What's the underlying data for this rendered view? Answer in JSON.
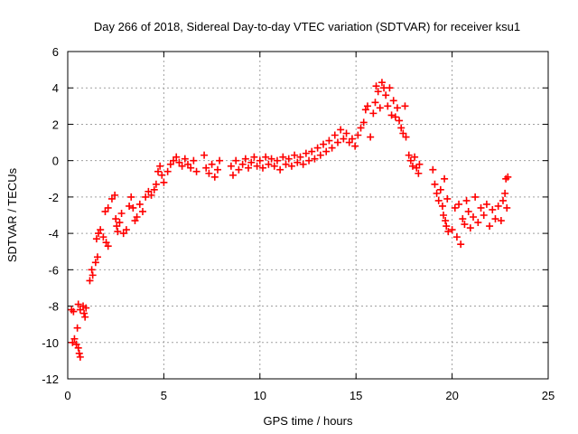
{
  "chart_data": {
    "type": "scatter",
    "title": "Day 266 of 2018, Sidereal Day-to-day VTEC variation (SDTVAR) for receiver ksu1",
    "xlabel": "GPS time / hours",
    "ylabel": "SDTVAR / TECUs",
    "xlim": [
      0,
      25
    ],
    "ylim": [
      -12,
      6
    ],
    "xticks": [
      "0",
      "5",
      "10",
      "15",
      "20",
      "25"
    ],
    "yticks": [
      "6",
      "4",
      "2",
      "0",
      "-2",
      "-4",
      "-6",
      "-8",
      "-10",
      "-12"
    ],
    "grid": true,
    "legend": "none",
    "marker": "plus",
    "color": "#ff0000",
    "series": [
      {
        "name": "SDTVAR",
        "points": [
          [
            0.2,
            -8.2
          ],
          [
            0.3,
            -8.3
          ],
          [
            0.25,
            -10.0
          ],
          [
            0.35,
            -9.8
          ],
          [
            0.45,
            -10.1
          ],
          [
            0.55,
            -10.3
          ],
          [
            0.6,
            -10.6
          ],
          [
            0.65,
            -10.8
          ],
          [
            0.5,
            -9.2
          ],
          [
            0.55,
            -7.9
          ],
          [
            0.65,
            -8.2
          ],
          [
            0.8,
            -8.0
          ],
          [
            0.85,
            -8.4
          ],
          [
            0.9,
            -8.6
          ],
          [
            0.95,
            -8.1
          ],
          [
            1.15,
            -6.6
          ],
          [
            1.25,
            -6.0
          ],
          [
            1.3,
            -6.3
          ],
          [
            1.45,
            -5.6
          ],
          [
            1.55,
            -5.3
          ],
          [
            1.5,
            -4.3
          ],
          [
            1.6,
            -4.0
          ],
          [
            1.7,
            -3.8
          ],
          [
            1.85,
            -4.2
          ],
          [
            2.0,
            -4.5
          ],
          [
            2.1,
            -4.7
          ],
          [
            1.95,
            -2.8
          ],
          [
            2.1,
            -2.6
          ],
          [
            2.3,
            -2.1
          ],
          [
            2.45,
            -1.9
          ],
          [
            2.5,
            -3.2
          ],
          [
            2.55,
            -3.6
          ],
          [
            2.6,
            -3.9
          ],
          [
            2.7,
            -3.4
          ],
          [
            2.8,
            -2.9
          ],
          [
            2.9,
            -4.0
          ],
          [
            3.05,
            -3.8
          ],
          [
            3.2,
            -2.5
          ],
          [
            3.3,
            -2.0
          ],
          [
            3.4,
            -2.6
          ],
          [
            3.5,
            -3.3
          ],
          [
            3.6,
            -3.1
          ],
          [
            3.75,
            -2.4
          ],
          [
            3.9,
            -2.8
          ],
          [
            4.05,
            -2.0
          ],
          [
            4.2,
            -1.7
          ],
          [
            4.35,
            -1.9
          ],
          [
            4.5,
            -1.6
          ],
          [
            4.6,
            -1.3
          ],
          [
            4.7,
            -0.6
          ],
          [
            4.8,
            -0.3
          ],
          [
            4.9,
            -0.8
          ],
          [
            5.0,
            -1.2
          ],
          [
            5.2,
            -0.6
          ],
          [
            5.35,
            -0.2
          ],
          [
            5.5,
            0.0
          ],
          [
            5.65,
            0.2
          ],
          [
            5.8,
            -0.1
          ],
          [
            5.95,
            -0.3
          ],
          [
            6.1,
            0.1
          ],
          [
            6.25,
            -0.2
          ],
          [
            6.4,
            -0.4
          ],
          [
            6.55,
            0.0
          ],
          [
            6.7,
            -0.6
          ],
          [
            7.1,
            0.3
          ],
          [
            7.2,
            -0.4
          ],
          [
            7.35,
            -0.7
          ],
          [
            7.5,
            -0.2
          ],
          [
            7.65,
            -0.9
          ],
          [
            7.8,
            -0.5
          ],
          [
            7.9,
            0.0
          ],
          [
            8.5,
            -0.3
          ],
          [
            8.6,
            -0.8
          ],
          [
            8.75,
            0.0
          ],
          [
            8.9,
            -0.5
          ],
          [
            9.1,
            -0.2
          ],
          [
            9.25,
            0.1
          ],
          [
            9.4,
            -0.4
          ],
          [
            9.55,
            -0.1
          ],
          [
            9.7,
            0.2
          ],
          [
            9.85,
            -0.3
          ],
          [
            10.0,
            0.0
          ],
          [
            10.15,
            -0.4
          ],
          [
            10.3,
            0.2
          ],
          [
            10.45,
            -0.2
          ],
          [
            10.6,
            0.1
          ],
          [
            10.75,
            -0.3
          ],
          [
            10.9,
            0.0
          ],
          [
            11.05,
            -0.5
          ],
          [
            11.2,
            0.2
          ],
          [
            11.35,
            -0.2
          ],
          [
            11.5,
            0.1
          ],
          [
            11.65,
            -0.3
          ],
          [
            11.8,
            0.3
          ],
          [
            11.95,
            -0.1
          ],
          [
            12.1,
            0.2
          ],
          [
            12.25,
            -0.2
          ],
          [
            12.4,
            0.4
          ],
          [
            12.55,
            0.0
          ],
          [
            12.7,
            0.5
          ],
          [
            12.85,
            0.1
          ],
          [
            13.0,
            0.7
          ],
          [
            13.15,
            0.3
          ],
          [
            13.3,
            0.9
          ],
          [
            13.45,
            0.5
          ],
          [
            13.6,
            1.1
          ],
          [
            13.75,
            0.7
          ],
          [
            13.9,
            1.4
          ],
          [
            14.05,
            1.0
          ],
          [
            14.2,
            1.7
          ],
          [
            14.35,
            1.2
          ],
          [
            14.5,
            1.5
          ],
          [
            14.65,
            1.0
          ],
          [
            14.8,
            1.2
          ],
          [
            14.95,
            0.8
          ],
          [
            15.1,
            1.4
          ],
          [
            15.25,
            1.8
          ],
          [
            15.4,
            2.1
          ],
          [
            15.5,
            2.8
          ],
          [
            15.6,
            3.0
          ],
          [
            15.75,
            1.3
          ],
          [
            15.9,
            2.6
          ],
          [
            16.0,
            3.2
          ],
          [
            16.05,
            4.1
          ],
          [
            16.15,
            3.8
          ],
          [
            16.25,
            2.9
          ],
          [
            16.35,
            4.3
          ],
          [
            16.45,
            4.0
          ],
          [
            16.55,
            3.6
          ],
          [
            16.65,
            3.0
          ],
          [
            16.75,
            4.0
          ],
          [
            16.85,
            2.5
          ],
          [
            16.95,
            3.3
          ],
          [
            17.05,
            2.4
          ],
          [
            17.15,
            2.9
          ],
          [
            17.25,
            2.2
          ],
          [
            17.35,
            1.8
          ],
          [
            17.45,
            1.5
          ],
          [
            17.55,
            3.0
          ],
          [
            17.6,
            1.3
          ],
          [
            17.75,
            0.3
          ],
          [
            17.85,
            0.0
          ],
          [
            17.95,
            -0.3
          ],
          [
            18.05,
            0.2
          ],
          [
            18.15,
            -0.4
          ],
          [
            18.25,
            -0.7
          ],
          [
            18.3,
            -0.2
          ],
          [
            19.0,
            -0.5
          ],
          [
            19.1,
            -1.3
          ],
          [
            19.2,
            -1.8
          ],
          [
            19.3,
            -2.2
          ],
          [
            19.4,
            -1.6
          ],
          [
            19.5,
            -2.5
          ],
          [
            19.55,
            -3.0
          ],
          [
            19.6,
            -1.0
          ],
          [
            19.65,
            -3.3
          ],
          [
            19.7,
            -3.6
          ],
          [
            19.75,
            -2.1
          ],
          [
            19.8,
            -3.9
          ],
          [
            20.0,
            -3.8
          ],
          [
            20.15,
            -2.6
          ],
          [
            20.25,
            -4.2
          ],
          [
            20.35,
            -2.4
          ],
          [
            20.45,
            -4.6
          ],
          [
            20.55,
            -3.2
          ],
          [
            20.65,
            -3.5
          ],
          [
            20.75,
            -2.2
          ],
          [
            20.85,
            -2.8
          ],
          [
            20.95,
            -3.7
          ],
          [
            21.1,
            -3.1
          ],
          [
            21.2,
            -2.0
          ],
          [
            21.35,
            -3.4
          ],
          [
            21.5,
            -2.6
          ],
          [
            21.65,
            -3.0
          ],
          [
            21.8,
            -2.4
          ],
          [
            21.95,
            -3.6
          ],
          [
            22.1,
            -2.7
          ],
          [
            22.25,
            -3.2
          ],
          [
            22.4,
            -2.5
          ],
          [
            22.55,
            -3.3
          ],
          [
            22.65,
            -2.2
          ],
          [
            22.75,
            -1.8
          ],
          [
            22.8,
            -1.0
          ],
          [
            22.85,
            -2.6
          ],
          [
            22.9,
            -0.9
          ]
        ]
      }
    ]
  }
}
